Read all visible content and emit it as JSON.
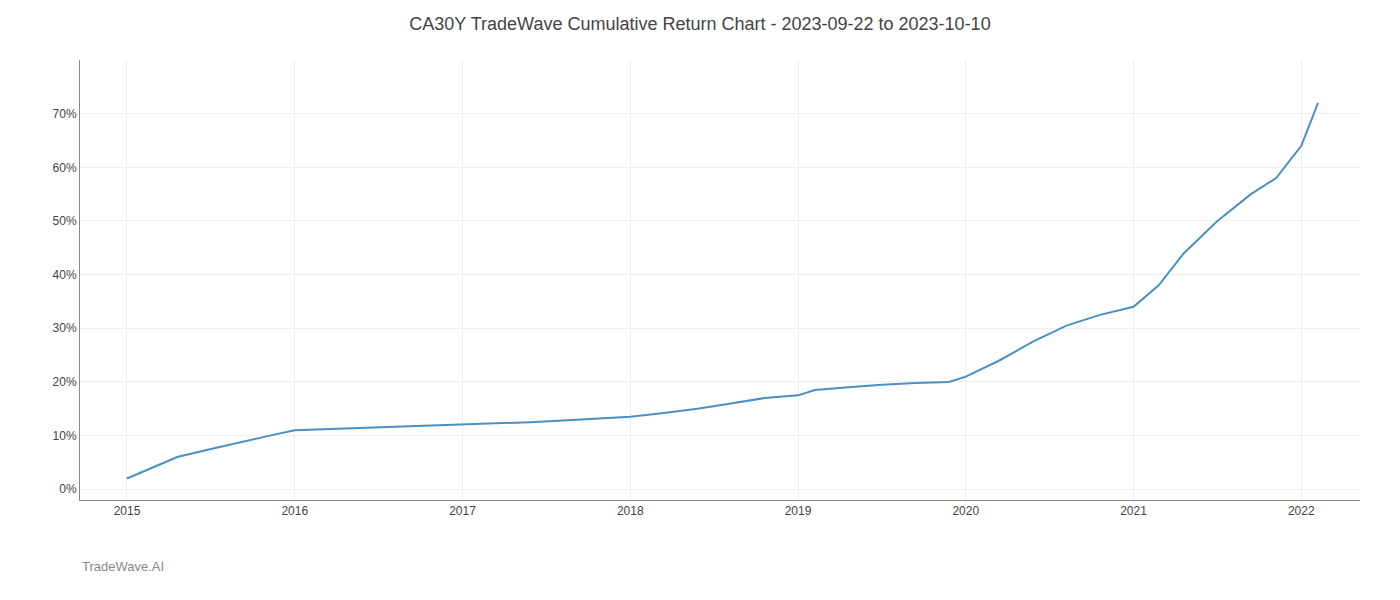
{
  "chart_data": {
    "type": "line",
    "title": "CA30Y TradeWave Cumulative Return Chart - 2023-09-22 to 2023-10-10",
    "annotations": [
      "TradeWave.AI"
    ],
    "x": [
      2015.0,
      2015.15,
      2015.3,
      2015.5,
      2015.7,
      2015.85,
      2016.0,
      2016.2,
      2016.4,
      2016.6,
      2016.8,
      2017.0,
      2017.2,
      2017.4,
      2017.6,
      2017.8,
      2018.0,
      2018.2,
      2018.4,
      2018.6,
      2018.8,
      2019.0,
      2019.1,
      2019.3,
      2019.5,
      2019.7,
      2019.9,
      2020.0,
      2020.2,
      2020.4,
      2020.6,
      2020.8,
      2021.0,
      2021.15,
      2021.3,
      2021.5,
      2021.7,
      2021.85,
      2022.0,
      2022.1
    ],
    "values": [
      2.0,
      4.0,
      6.0,
      7.5,
      9.0,
      10.0,
      11.0,
      11.2,
      11.4,
      11.6,
      11.9,
      12.1,
      12.3,
      12.5,
      12.8,
      13.1,
      13.5,
      14.2,
      15.0,
      16.0,
      17.0,
      17.5,
      18.5,
      19.0,
      19.5,
      19.8,
      20.0,
      21.0,
      24.0,
      27.5,
      30.5,
      32.5,
      34.0,
      38.0,
      44.0,
      50.0,
      55.0,
      58.0,
      64.0,
      72.0
    ],
    "color": "#4a90c4",
    "xlim": [
      2014.72,
      2022.35
    ],
    "xticks": [
      2015,
      2016,
      2017,
      2018,
      2019,
      2020,
      2021,
      2022
    ],
    "ylim": [
      -2,
      80
    ],
    "yticks": [
      {
        "value": 0,
        "label": "0%"
      },
      {
        "value": 10,
        "label": "10%"
      },
      {
        "value": 20,
        "label": "20%"
      },
      {
        "value": 30,
        "label": "30%"
      },
      {
        "value": 40,
        "label": "40%"
      },
      {
        "value": 50,
        "label": "50%"
      },
      {
        "value": 60,
        "label": "60%"
      },
      {
        "value": 70,
        "label": "70%"
      }
    ],
    "grid": true
  }
}
